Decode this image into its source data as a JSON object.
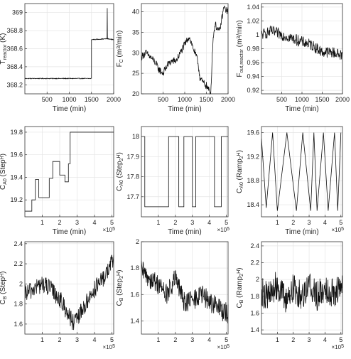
{
  "chart_data": [
    {
      "id": "p1",
      "type": "line",
      "ylabel": "T_reactor (K)",
      "xlabel": "Time (min)",
      "xlim": [
        0,
        2000
      ],
      "ylim": [
        368.1,
        369.1
      ],
      "xticks": [
        "500",
        "1000",
        "1500",
        "2000"
      ],
      "xtick_values": [
        500,
        1000,
        1500,
        2000
      ],
      "yticks": [
        "368.2",
        "368.4",
        "368.6",
        "368.8",
        "369"
      ],
      "ytick_values": [
        368.2,
        368.4,
        368.6,
        368.8,
        369.0
      ],
      "x_multiplier": "",
      "grid": true,
      "series": [
        {
          "x": [
            0,
            1500,
            1500,
            1850,
            1855,
            1860,
            2000
          ],
          "y": [
            368.27,
            368.27,
            368.7,
            368.71,
            369.05,
            368.71,
            368.7
          ]
        }
      ]
    },
    {
      "id": "p2",
      "type": "line",
      "ylabel": "F_C (m^3/min)",
      "xlabel": "Time (min)",
      "xlim": [
        0,
        2000
      ],
      "ylim": [
        20,
        42
      ],
      "xticks": [
        "500",
        "1000",
        "1500",
        "2000"
      ],
      "xtick_values": [
        500,
        1000,
        1500,
        2000
      ],
      "yticks": [
        "20",
        "25",
        "30",
        "35",
        "40"
      ],
      "ytick_values": [
        20,
        25,
        30,
        35,
        40
      ],
      "x_multiplier": "",
      "grid": true,
      "series": [
        {
          "x": [
            0,
            100,
            200,
            300,
            400,
            500,
            600,
            700,
            800,
            900,
            1000,
            1100,
            1200,
            1300,
            1350,
            1400,
            1500,
            1600,
            1650,
            1700,
            1800,
            1900,
            2000
          ],
          "y": [
            29,
            30,
            29,
            28,
            26,
            25,
            27,
            28,
            28,
            30,
            32,
            34,
            31,
            28,
            24,
            23,
            22,
            20,
            33,
            37,
            35,
            41,
            40
          ]
        }
      ]
    },
    {
      "id": "p3",
      "type": "line",
      "ylabel": "F_out,reactor (m^3/min)",
      "xlabel": "Time (min)",
      "xlim": [
        0,
        2000
      ],
      "ylim": [
        0.915,
        1.045
      ],
      "xticks": [
        "500",
        "1000",
        "1500",
        "2000"
      ],
      "xtick_values": [
        500,
        1000,
        1500,
        2000
      ],
      "yticks": [
        "0.92",
        "0.94",
        "0.96",
        "0.98",
        "1",
        "1.02",
        "1.04"
      ],
      "ytick_values": [
        0.92,
        0.94,
        0.96,
        0.98,
        1.0,
        1.02,
        1.04
      ],
      "x_multiplier": "",
      "grid": true,
      "series": [
        {
          "x": [
            0,
            250,
            500,
            750,
            1000,
            1250,
            1500,
            1750,
            2000
          ],
          "y": [
            1.0,
            1.005,
            1.0,
            0.995,
            0.99,
            0.985,
            0.975,
            0.975,
            0.97
          ]
        }
      ]
    },
    {
      "id": "p4",
      "type": "line",
      "ylabel": "C_A0 (Step^H)",
      "xlabel": "Time (min)",
      "xlim": [
        0,
        510000
      ],
      "ylim": [
        19.05,
        19.85
      ],
      "xticks": [
        "1",
        "2",
        "3",
        "4",
        "5"
      ],
      "xtick_values": [
        100000,
        200000,
        300000,
        400000,
        500000
      ],
      "yticks": [
        "19.2",
        "19.4",
        "19.6",
        "19.8"
      ],
      "ytick_values": [
        19.2,
        19.4,
        19.6,
        19.8
      ],
      "x_multiplier": "×10^5",
      "grid": true,
      "series": [
        {
          "x": [
            0,
            40000,
            40000,
            60000,
            60000,
            80000,
            80000,
            100000,
            100000,
            140000,
            140000,
            160000,
            160000,
            200000,
            200000,
            230000,
            230000,
            250000,
            250000,
            260000,
            260000,
            510000
          ],
          "y": [
            19.1,
            19.1,
            19.2,
            19.2,
            19.38,
            19.38,
            19.22,
            19.22,
            19.22,
            19.22,
            19.39,
            19.39,
            19.54,
            19.54,
            19.42,
            19.42,
            19.36,
            19.36,
            19.52,
            19.52,
            19.8,
            19.8
          ]
        }
      ]
    },
    {
      "id": "p5",
      "type": "line",
      "ylabel": "C_A0 (Step_2^H)",
      "xlabel": "Time (min)",
      "xlim": [
        0,
        510000
      ],
      "ylim": [
        17.6,
        18.05
      ],
      "xticks": [
        "1",
        "2",
        "3",
        "4",
        "5"
      ],
      "xtick_values": [
        100000,
        200000,
        300000,
        400000,
        500000
      ],
      "yticks": [
        "17.7",
        "17.8",
        "17.9",
        "18"
      ],
      "ytick_values": [
        17.7,
        17.8,
        17.9,
        18.0
      ],
      "x_multiplier": "×10^5",
      "grid": true,
      "series": [
        {
          "x": [
            0,
            20000,
            20000,
            160000,
            160000,
            220000,
            220000,
            250000,
            250000,
            300000,
            300000,
            320000,
            320000,
            430000,
            430000,
            470000,
            470000,
            510000
          ],
          "y": [
            18,
            18,
            17.65,
            17.65,
            18,
            18,
            17.65,
            17.65,
            18,
            18,
            17.65,
            17.65,
            18,
            18,
            17.65,
            17.65,
            18,
            18
          ]
        }
      ]
    },
    {
      "id": "p6",
      "type": "line",
      "ylabel": "C_A0 (Ramp_2^H)",
      "xlabel": "Time (min)",
      "xlim": [
        0,
        510000
      ],
      "ylim": [
        18.2,
        19.7
      ],
      "xticks": [
        "1",
        "2",
        "3",
        "4",
        "5"
      ],
      "xtick_values": [
        100000,
        200000,
        300000,
        400000,
        500000
      ],
      "yticks": [
        "18.4",
        "18.8",
        "19.2",
        "19.6"
      ],
      "ytick_values": [
        18.4,
        18.8,
        19.2,
        19.6
      ],
      "x_multiplier": "×10^5",
      "grid": true,
      "series": [
        {
          "x": [
            0,
            30000,
            70000,
            100000,
            160000,
            220000,
            260000,
            310000,
            330000,
            350000,
            390000,
            420000,
            460000,
            480000,
            500000
          ],
          "y": [
            19.5,
            18.35,
            19.6,
            18.3,
            19.6,
            18.3,
            19.6,
            18.3,
            19.6,
            18.3,
            19.6,
            18.3,
            19.6,
            18.3,
            19.6
          ]
        }
      ]
    },
    {
      "id": "p7",
      "type": "line",
      "ylabel": "C_B (Step^H)",
      "xlabel": "",
      "xlim": [
        0,
        510000
      ],
      "ylim": [
        1.5,
        2.42
      ],
      "xticks": [
        "1",
        "2",
        "3",
        "4",
        "5"
      ],
      "xtick_values": [
        100000,
        200000,
        300000,
        400000,
        500000
      ],
      "yticks": [
        "1.6",
        "1.8",
        "2",
        "2.2",
        "2.4"
      ],
      "ytick_values": [
        1.6,
        1.8,
        2.0,
        2.2,
        2.4
      ],
      "x_multiplier": "×10^5",
      "grid": true,
      "series": [
        {
          "x": [
            0,
            50000,
            100000,
            150000,
            200000,
            250000,
            280000,
            300000,
            350000,
            400000,
            450000,
            510000
          ],
          "y": [
            1.9,
            1.95,
            2.0,
            1.95,
            1.85,
            1.7,
            1.6,
            1.65,
            1.8,
            1.95,
            2.05,
            2.25
          ]
        }
      ]
    },
    {
      "id": "p8",
      "type": "line",
      "ylabel": "C_B (Step_2^H)",
      "xlabel": "",
      "xlim": [
        0,
        510000
      ],
      "ylim": [
        1.3,
        2.0
      ],
      "xticks": [
        "1",
        "2",
        "3",
        "4",
        "5"
      ],
      "xtick_values": [
        100000,
        200000,
        300000,
        400000,
        500000
      ],
      "yticks": [
        "1.4",
        "1.6",
        "1.8",
        "2"
      ],
      "ytick_values": [
        1.4,
        1.6,
        1.8,
        2.0
      ],
      "x_multiplier": "×10^5",
      "grid": true,
      "series": [
        {
          "x": [
            0,
            50000,
            100000,
            150000,
            200000,
            250000,
            300000,
            350000,
            400000,
            450000,
            510000
          ],
          "y": [
            1.78,
            1.72,
            1.68,
            1.6,
            1.72,
            1.55,
            1.55,
            1.6,
            1.55,
            1.5,
            1.45
          ]
        }
      ]
    },
    {
      "id": "p9",
      "type": "line",
      "ylabel": "C_B (Ramp_2^H)",
      "xlabel": "",
      "xlim": [
        0,
        510000
      ],
      "ylim": [
        1.35,
        2.45
      ],
      "xticks": [
        "1",
        "2",
        "3",
        "4",
        "5"
      ],
      "xtick_values": [
        100000,
        200000,
        300000,
        400000,
        500000
      ],
      "yticks": [
        "1.4",
        "1.6",
        "1.8",
        "2",
        "2.2",
        "2.4"
      ],
      "ytick_values": [
        1.4,
        1.6,
        1.8,
        2.0,
        2.2,
        2.4
      ],
      "x_multiplier": "×10^5",
      "grid": true,
      "series": [
        {
          "x": [
            0,
            50000,
            100000,
            150000,
            200000,
            250000,
            300000,
            350000,
            400000,
            450000,
            510000
          ],
          "y": [
            1.85,
            1.8,
            1.95,
            1.75,
            1.9,
            1.8,
            1.95,
            1.8,
            1.9,
            1.85,
            1.9
          ]
        }
      ]
    }
  ]
}
